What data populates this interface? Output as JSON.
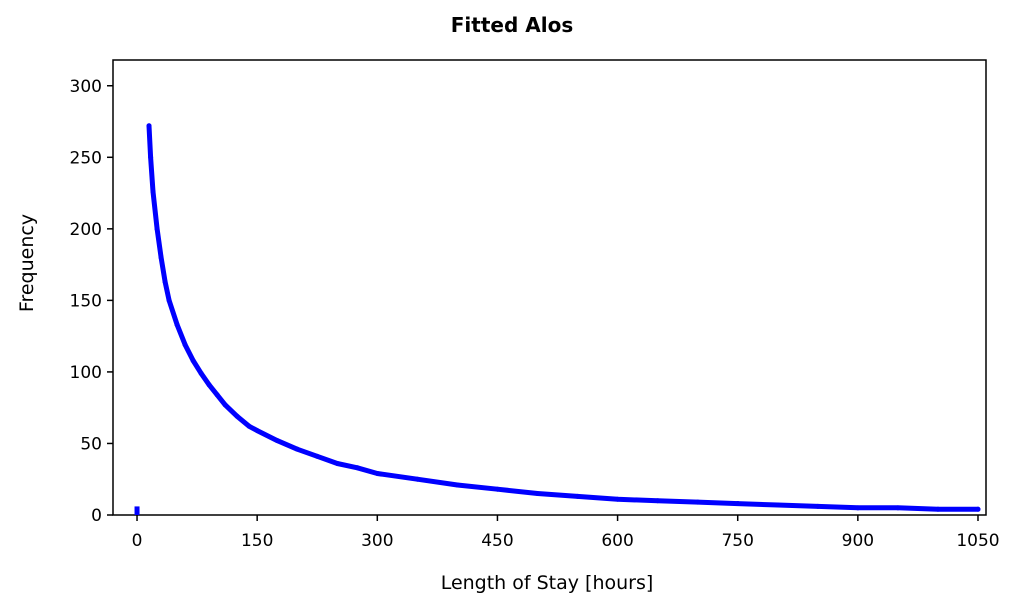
{
  "chart_data": {
    "type": "line",
    "title": "Fitted Alos",
    "xlabel": "Length of Stay [hours]",
    "ylabel": "Frequency",
    "xlim": [
      -30,
      1060
    ],
    "ylim": [
      0,
      318
    ],
    "xticks": [
      0,
      150,
      300,
      450,
      600,
      750,
      900,
      1050
    ],
    "yticks": [
      0,
      50,
      100,
      150,
      200,
      250,
      300
    ],
    "grid": false,
    "line_color": "#0000FF",
    "axis_color": "#000000",
    "background": "#FFFFFF",
    "series": [
      {
        "points": [
          [
            0,
            0
          ],
          [
            0,
            6
          ],
          [
            15,
            272
          ],
          [
            17,
            250
          ],
          [
            20,
            226
          ],
          [
            25,
            200
          ],
          [
            30,
            180
          ],
          [
            35,
            163
          ],
          [
            40,
            150
          ],
          [
            50,
            133
          ],
          [
            60,
            119
          ],
          [
            70,
            108
          ],
          [
            80,
            99
          ],
          [
            90,
            91
          ],
          [
            100,
            84
          ],
          [
            110,
            77
          ],
          [
            125,
            69
          ],
          [
            140,
            62
          ],
          [
            150,
            59
          ],
          [
            175,
            52
          ],
          [
            200,
            46
          ],
          [
            225,
            41
          ],
          [
            250,
            36
          ],
          [
            275,
            33
          ],
          [
            300,
            29
          ],
          [
            350,
            25
          ],
          [
            400,
            21
          ],
          [
            450,
            18
          ],
          [
            500,
            15
          ],
          [
            550,
            13
          ],
          [
            600,
            11
          ],
          [
            650,
            10
          ],
          [
            700,
            9
          ],
          [
            750,
            8
          ],
          [
            800,
            7
          ],
          [
            850,
            6
          ],
          [
            900,
            5
          ],
          [
            950,
            5
          ],
          [
            1000,
            4
          ],
          [
            1050,
            4
          ]
        ]
      }
    ]
  }
}
